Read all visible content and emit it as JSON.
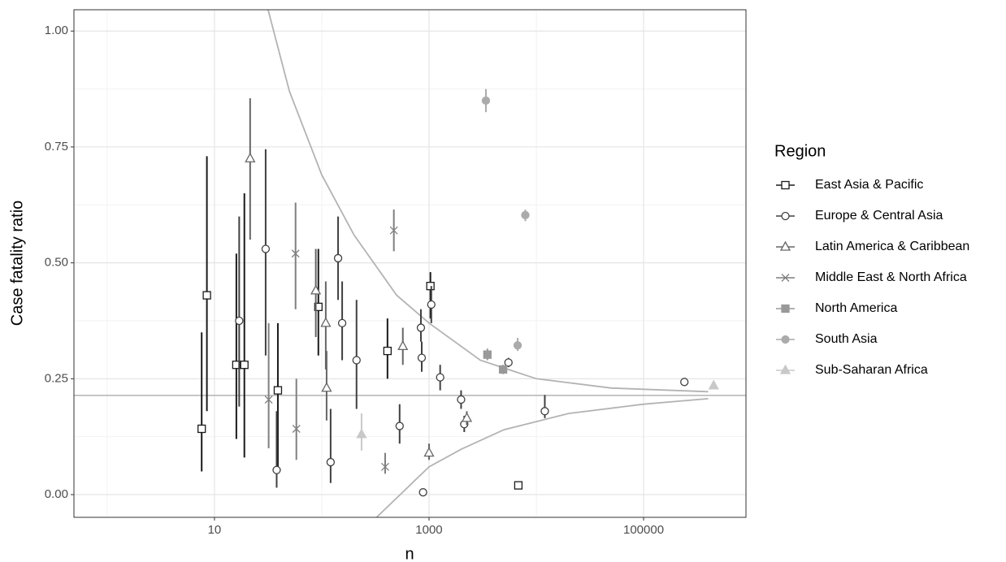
{
  "chart_data": {
    "type": "scatter",
    "xlabel": "n",
    "ylabel": "Case fatality ratio",
    "xscale": "log",
    "xlim": [
      0.49,
      900000
    ],
    "ylim": [
      -0.049,
      1.046
    ],
    "xticks": [
      10,
      1000,
      100000
    ],
    "yticks": [
      {
        "value": 0,
        "label": "0.00"
      },
      {
        "value": 0.25,
        "label": "0.25"
      },
      {
        "value": 0.5,
        "label": "0.50"
      },
      {
        "value": 0.75,
        "label": "0.75"
      },
      {
        "value": 1,
        "label": "1.00"
      }
    ],
    "grid": true,
    "legend_title": "Region",
    "legend_position": "right",
    "reference_line": {
      "value": 0.214,
      "color": "#b3b3b3"
    },
    "funnel": {
      "color": "#b3b3b3",
      "upper": {
        "x": [
          31.6,
          50,
          100,
          200,
          500,
          1000,
          3000,
          10000,
          50000,
          400000
        ],
        "values": [
          1.046,
          0.87,
          0.69,
          0.56,
          0.43,
          0.37,
          0.29,
          0.25,
          0.23,
          0.222
        ]
      },
      "lower": {
        "x": [
          324,
          1000,
          2000,
          5000,
          20000,
          100000,
          400000
        ],
        "values": [
          -0.049,
          0.06,
          0.098,
          0.14,
          0.175,
          0.195,
          0.207
        ]
      }
    },
    "series": [
      {
        "name": "East Asia & Pacific",
        "color": "#1a1a1a",
        "shape": "square",
        "filled": false,
        "x": [
          7.6,
          8.5,
          16,
          19,
          39,
          93,
          410,
          1030,
          6800
        ],
        "values": [
          0.142,
          0.43,
          0.28,
          0.28,
          0.225,
          0.405,
          0.31,
          0.45,
          0.02
        ],
        "lower": [
          0.05,
          0.18,
          0.12,
          0.08,
          0.06,
          0.3,
          0.25,
          0.38,
          0.015
        ],
        "upper": [
          0.35,
          0.73,
          0.52,
          0.65,
          0.37,
          0.53,
          0.38,
          0.48,
          0.028
        ]
      },
      {
        "name": "Europe & Central Asia",
        "color": "#404040",
        "shape": "circle",
        "filled": false,
        "x": [
          38,
          17,
          30,
          121,
          142,
          155,
          211,
          532,
          840,
          855,
          880,
          1050,
          1270,
          1990,
          2130,
          5500,
          12000,
          240000
        ],
        "values": [
          0.053,
          0.375,
          0.53,
          0.07,
          0.51,
          0.37,
          0.29,
          0.148,
          0.36,
          0.295,
          0.005,
          0.41,
          0.253,
          0.205,
          0.152,
          0.285,
          0.18,
          0.243
        ],
        "lower": [
          0.015,
          0.19,
          0.3,
          0.025,
          0.42,
          0.29,
          0.185,
          0.11,
          0.33,
          0.265,
          0.001,
          0.37,
          0.225,
          0.185,
          0.135,
          0.275,
          0.165,
          0.24
        ],
        "upper": [
          0.18,
          0.6,
          0.745,
          0.185,
          0.6,
          0.46,
          0.42,
          0.195,
          0.4,
          0.33,
          0.012,
          0.45,
          0.28,
          0.225,
          0.17,
          0.295,
          0.215,
          0.246
        ]
      },
      {
        "name": "Latin America & Caribbean",
        "color": "#666666",
        "shape": "triangle",
        "filled": false,
        "x": [
          21.5,
          88,
          109,
          111,
          570,
          1000,
          2250
        ],
        "values": [
          0.725,
          0.44,
          0.37,
          0.23,
          0.32,
          0.09,
          0.165
        ],
        "lower": [
          0.55,
          0.34,
          0.27,
          0.16,
          0.28,
          0.075,
          0.15
        ],
        "upper": [
          0.855,
          0.53,
          0.46,
          0.31,
          0.36,
          0.11,
          0.18
        ]
      },
      {
        "name": "Middle East & North Africa",
        "color": "#7f7f7f",
        "shape": "cross",
        "filled": false,
        "x": [
          32,
          57,
          58,
          390,
          470
        ],
        "values": [
          0.205,
          0.52,
          0.142,
          0.06,
          0.57
        ],
        "lower": [
          0.1,
          0.4,
          0.075,
          0.045,
          0.525
        ],
        "upper": [
          0.37,
          0.63,
          0.25,
          0.09,
          0.615
        ]
      },
      {
        "name": "North America",
        "color": "#999999",
        "shape": "square",
        "filled": true,
        "x": [
          3500,
          4900
        ],
        "values": [
          0.302,
          0.27
        ],
        "lower": [
          0.29,
          0.26
        ],
        "upper": [
          0.315,
          0.28
        ]
      },
      {
        "name": "South Asia",
        "color": "#ababab",
        "shape": "circle",
        "filled": true,
        "x": [
          3390,
          6700,
          7900
        ],
        "values": [
          0.85,
          0.322,
          0.603
        ],
        "lower": [
          0.825,
          0.31,
          0.59
        ],
        "upper": [
          0.875,
          0.338,
          0.615
        ]
      },
      {
        "name": "Sub-Saharan Africa",
        "color": "#c8c8c8",
        "shape": "triangle",
        "filled": true,
        "x": [
          235,
          450000
        ],
        "values": [
          0.13,
          0.235
        ],
        "lower": [
          0.095,
          0.23
        ],
        "upper": [
          0.175,
          0.24
        ]
      }
    ]
  }
}
